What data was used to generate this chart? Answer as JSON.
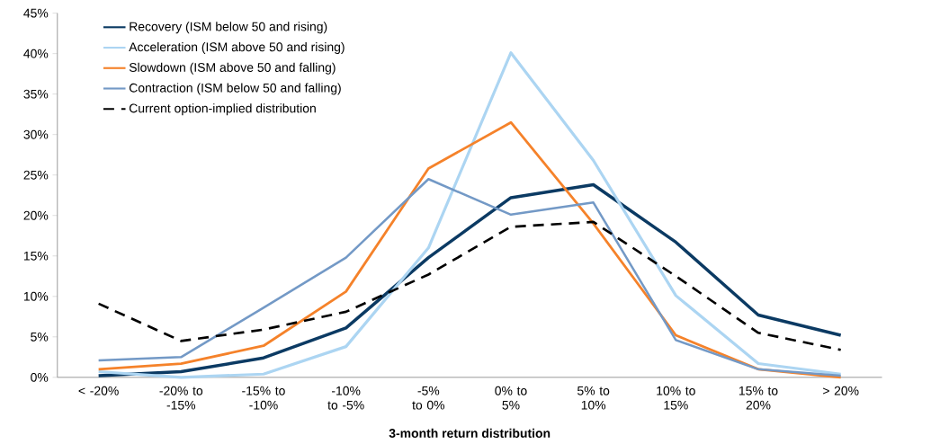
{
  "chart_data": {
    "type": "line",
    "xlabel": "3-month return distribution",
    "categories": [
      "< -20%",
      "-20% to -15%",
      "-15% to -10%",
      "-10% to -5%",
      "-5% to 0%",
      "0% to 5%",
      "5% to 10%",
      "10% to 15%",
      "15% to 20%",
      "> 20%"
    ],
    "series": [
      {
        "name": "Recovery (ISM below 50 and rising)",
        "color": "#0b3a63",
        "values": [
          0.2,
          0.7,
          2.4,
          6.1,
          14.8,
          22.2,
          23.8,
          16.7,
          7.7,
          5.2
        ]
      },
      {
        "name": "Acceleration (ISM above 50 and rising)",
        "color": "#acd5f2",
        "values": [
          0.7,
          0.0,
          0.4,
          3.8,
          16.0,
          40.1,
          26.8,
          10.1,
          1.7,
          0.4
        ]
      },
      {
        "name": "Slowdown (ISM above 50 and falling)",
        "color": "#f5822a",
        "values": [
          1.0,
          1.7,
          3.9,
          10.6,
          25.8,
          31.5,
          19.0,
          5.2,
          1.0,
          0.0
        ]
      },
      {
        "name": "Contraction (ISM below 50 and falling)",
        "color": "#7399c6",
        "values": [
          2.1,
          2.5,
          8.6,
          14.8,
          24.5,
          20.1,
          21.6,
          4.6,
          1.0,
          0.2
        ]
      },
      {
        "name": "Current option-implied distribution",
        "color": "#000000",
        "line_style": "dashed",
        "values": [
          9.1,
          4.5,
          5.9,
          8.1,
          12.7,
          18.6,
          19.2,
          12.5,
          5.5,
          3.4
        ]
      }
    ],
    "ylim": [
      0,
      45
    ],
    "yticks": [
      {
        "value": 0,
        "label": "0%"
      },
      {
        "value": 5,
        "label": "5%"
      },
      {
        "value": 10,
        "label": "10%"
      },
      {
        "value": 15,
        "label": "15%"
      },
      {
        "value": 20,
        "label": "20%"
      },
      {
        "value": 25,
        "label": "25%"
      },
      {
        "value": 30,
        "label": "30%"
      },
      {
        "value": 35,
        "label": "35%"
      },
      {
        "value": 40,
        "label": "40%"
      },
      {
        "value": 45,
        "label": "45%"
      }
    ],
    "grid": false,
    "legend": "top left",
    "marker": "none"
  }
}
